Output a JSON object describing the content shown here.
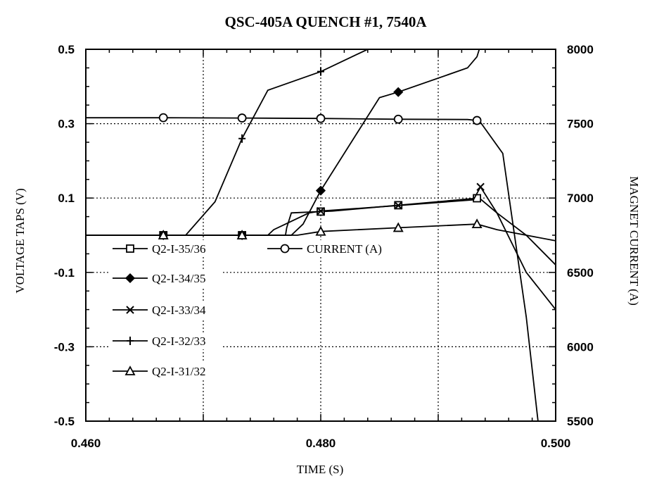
{
  "chart_data": {
    "type": "line",
    "title": "QSC-405A  QUENCH  #1,  7540A",
    "xlabel": "TIME (S)",
    "ylabel": "VOLTAGE TAPS (V)",
    "y2label": "MAGNET CURRENT (A)",
    "xlim": [
      0.46,
      0.5
    ],
    "ylim": [
      -0.5,
      0.5
    ],
    "y2lim": [
      5500,
      8000
    ],
    "x_ticks": [
      0.46,
      0.47,
      0.48,
      0.49,
      0.5
    ],
    "x_tick_labels": [
      "0.460",
      "",
      "0.480",
      "",
      "0.500"
    ],
    "y_tick_labels": [
      "0.5",
      "0.3",
      "0.1",
      "-0.1",
      "-0.3",
      "-0.5"
    ],
    "y_ticks": [
      0.5,
      0.3,
      0.1,
      -0.1,
      -0.3,
      -0.5
    ],
    "y2_tick_labels": [
      "8000",
      "7500",
      "7000",
      "6500",
      "6000",
      "5500"
    ],
    "y2_ticks": [
      8000,
      7500,
      7000,
      6500,
      6000,
      5500
    ],
    "grid": true,
    "legend": "inside, lower-left",
    "series": [
      {
        "name": "Q2-I-35/36",
        "marker": "square",
        "axis": "left",
        "points": [
          [
            0.46,
            0.0
          ],
          [
            0.477,
            0.0
          ],
          [
            0.4771,
            0.02
          ],
          [
            0.4775,
            0.06
          ],
          [
            0.481,
            0.065
          ],
          [
            0.4935,
            0.1
          ],
          [
            0.495,
            0.06
          ],
          [
            0.4975,
            -0.0
          ],
          [
            0.5,
            -0.08
          ]
        ],
        "marker_x": [
          0.4666,
          0.4733,
          0.48,
          0.4866,
          0.4933
        ]
      },
      {
        "name": "Q2-I-34/35",
        "marker": "diamond",
        "axis": "left",
        "points": [
          [
            0.46,
            0.0
          ],
          [
            0.4775,
            0.0
          ],
          [
            0.4785,
            0.03
          ],
          [
            0.48,
            0.12
          ],
          [
            0.485,
            0.37
          ],
          [
            0.4866,
            0.385
          ],
          [
            0.4925,
            0.45
          ],
          [
            0.4933,
            0.48
          ],
          [
            0.4935,
            0.5
          ]
        ],
        "marker_x": [
          0.4666,
          0.4733,
          0.48,
          0.4866
        ]
      },
      {
        "name": "Q2-I-33/34",
        "marker": "x",
        "axis": "left",
        "points": [
          [
            0.46,
            0.0
          ],
          [
            0.4755,
            0.0
          ],
          [
            0.476,
            0.015
          ],
          [
            0.477,
            0.03
          ],
          [
            0.479,
            0.06
          ],
          [
            0.48,
            0.065
          ],
          [
            0.4866,
            0.08
          ],
          [
            0.493,
            0.095
          ],
          [
            0.4936,
            0.13
          ],
          [
            0.495,
            0.06
          ],
          [
            0.4975,
            -0.1
          ],
          [
            0.5,
            -0.2
          ]
        ],
        "marker_x": [
          0.4666,
          0.4733,
          0.48,
          0.4866,
          0.4936
        ]
      },
      {
        "name": "Q2-I-32/33",
        "marker": "plus",
        "axis": "left",
        "points": [
          [
            0.46,
            0.0
          ],
          [
            0.4685,
            0.0
          ],
          [
            0.471,
            0.09
          ],
          [
            0.4733,
            0.26
          ],
          [
            0.4755,
            0.39
          ],
          [
            0.48,
            0.44
          ],
          [
            0.484,
            0.5
          ]
        ],
        "marker_x": [
          0.4666,
          0.4733,
          0.48
        ]
      },
      {
        "name": "Q2-I-31/32",
        "marker": "triangle",
        "axis": "left",
        "points": [
          [
            0.46,
            0.0
          ],
          [
            0.478,
            0.0
          ],
          [
            0.48,
            0.01
          ],
          [
            0.4866,
            0.02
          ],
          [
            0.4933,
            0.03
          ],
          [
            0.495,
            0.015
          ],
          [
            0.4975,
            -0.0
          ],
          [
            0.5,
            -0.015
          ]
        ],
        "marker_x": [
          0.4666,
          0.4733,
          0.48,
          0.4866,
          0.4933
        ]
      },
      {
        "name": "CURRENT (A)",
        "marker": "circle",
        "axis": "right",
        "points": [
          [
            0.46,
            7540
          ],
          [
            0.4666,
            7540
          ],
          [
            0.4733,
            7538
          ],
          [
            0.48,
            7535
          ],
          [
            0.4866,
            7530
          ],
          [
            0.4925,
            7528
          ],
          [
            0.4935,
            7520
          ],
          [
            0.4955,
            7300
          ],
          [
            0.4975,
            6200
          ],
          [
            0.4985,
            5500
          ]
        ],
        "marker_x": [
          0.4666,
          0.4733,
          0.48,
          0.4866,
          0.4933
        ]
      }
    ],
    "legend_entries": [
      "Q2-I-35/36",
      "CURRENT (A)",
      "Q2-I-34/35",
      "Q2-I-33/34",
      "Q2-I-32/33",
      "Q2-I-31/32"
    ]
  }
}
